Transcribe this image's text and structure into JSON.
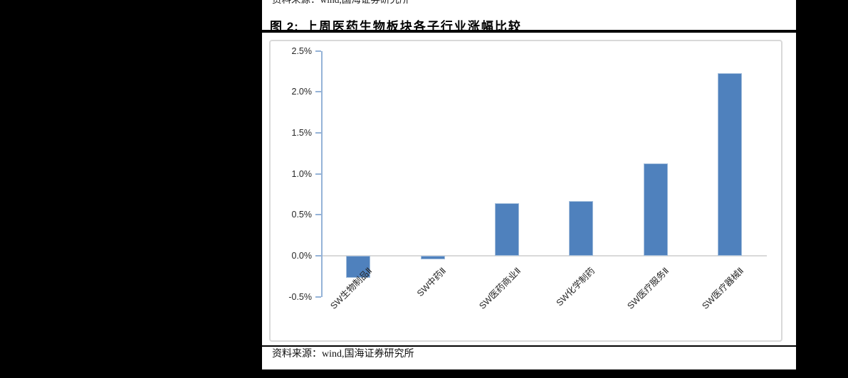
{
  "colors": {
    "background": "#000000",
    "page": "#ffffff",
    "rule": "#000000",
    "bar_fill": "#4F81BD",
    "bar_border": "#A3BEDC",
    "axis": "#95B3D7",
    "zero_line": "#D9D9D9",
    "text": "#262626"
  },
  "header": {
    "partial_source_line": "资料来源：wind,国海证券研究所",
    "figure_label": "图 2:",
    "figure_title": "上周医药生物板块各子行业涨幅比较"
  },
  "footer": {
    "source_label": "资料来源：",
    "source_value": "wind,国海证券研究所"
  },
  "chart_data": {
    "type": "bar",
    "title": "图 2: 上周医药生物板块各子行业涨幅比较",
    "categories": [
      "SW生物制品Ⅱ",
      "SW中药Ⅱ",
      "SW医药商业Ⅱ",
      "SW化学制药",
      "SW医疗服务Ⅱ",
      "SW医疗器械Ⅱ"
    ],
    "values": [
      -0.27,
      -0.04,
      0.64,
      0.67,
      1.13,
      2.23
    ],
    "value_unit": "%",
    "xlabel": "",
    "ylabel": "",
    "ylim": [
      -0.5,
      2.5
    ],
    "y_tick_labels": [
      "2.5%",
      "2.0%",
      "1.5%",
      "1.0%",
      "0.5%",
      "0.0%",
      "-0.5%"
    ],
    "y_tick_values": [
      2.5,
      2.0,
      1.5,
      1.0,
      0.5,
      0.0,
      -0.5
    ],
    "grid": "zero-line-only",
    "legend": "none",
    "bar_color": "#4F81BD",
    "axis_color": "#95B3D7"
  }
}
